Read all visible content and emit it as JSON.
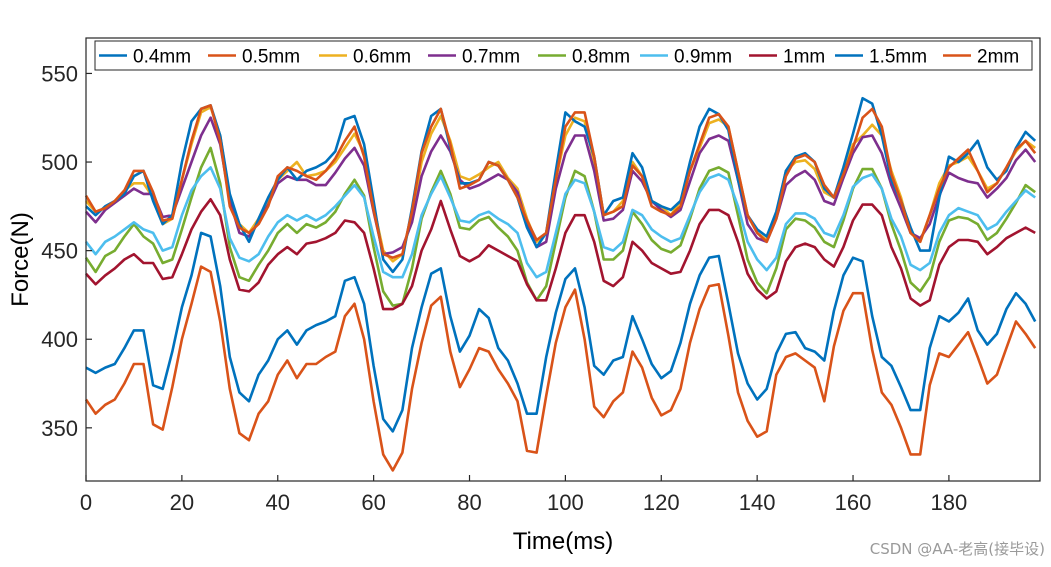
{
  "chart_data": {
    "type": "line",
    "xlabel": "Time(ms)",
    "ylabel": "Force(N)",
    "xlim": [
      0,
      199
    ],
    "ylim": [
      320,
      570
    ],
    "xticks": [
      0,
      20,
      40,
      60,
      80,
      100,
      120,
      140,
      160,
      180
    ],
    "yticks": [
      350,
      400,
      450,
      500,
      550
    ],
    "grid": false,
    "legend_position": "top",
    "x": [
      0,
      2,
      4,
      6,
      8,
      10,
      12,
      14,
      16,
      18,
      20,
      22,
      24,
      26,
      28,
      30,
      32,
      34,
      36,
      38,
      40,
      42,
      44,
      46,
      48,
      50,
      52,
      54,
      56,
      58,
      60,
      62,
      64,
      66,
      68,
      70,
      72,
      74,
      76,
      78,
      80,
      82,
      84,
      86,
      88,
      90,
      92,
      94,
      96,
      98,
      100,
      102,
      104,
      106,
      108,
      110,
      112,
      114,
      116,
      118,
      120,
      122,
      124,
      126,
      128,
      130,
      132,
      134,
      136,
      138,
      140,
      142,
      144,
      146,
      148,
      150,
      152,
      154,
      156,
      158,
      160,
      162,
      164,
      166,
      168,
      170,
      172,
      174,
      176,
      178,
      180,
      182,
      184,
      186,
      188,
      190,
      192,
      194,
      196,
      198
    ],
    "series": [
      {
        "name": "0.4mm",
        "color": "#0072BD",
        "values": [
          384,
          381,
          384,
          386,
          395,
          405,
          405,
          374,
          372,
          393,
          418,
          436,
          460,
          458,
          430,
          390,
          370,
          365,
          380,
          388,
          400,
          405,
          397,
          405,
          408,
          410,
          413,
          433,
          435,
          420,
          385,
          355,
          348,
          360,
          395,
          418,
          437,
          440,
          413,
          393,
          402,
          417,
          412,
          395,
          388,
          375,
          358,
          358,
          390,
          415,
          434,
          440,
          418,
          385,
          380,
          388,
          390,
          413,
          400,
          386,
          378,
          382,
          398,
          420,
          436,
          446,
          447,
          420,
          392,
          375,
          366,
          372,
          392,
          403,
          404,
          395,
          393,
          388,
          416,
          436,
          446,
          444,
          413,
          390,
          385,
          373,
          360,
          360,
          395,
          413,
          410,
          415,
          423,
          405,
          397,
          403,
          417,
          426,
          420,
          410
        ]
      },
      {
        "name": "0.5mm",
        "color": "#D95319",
        "values": [
          366,
          358,
          363,
          366,
          375,
          386,
          386,
          352,
          349,
          373,
          400,
          420,
          441,
          438,
          410,
          372,
          347,
          343,
          358,
          365,
          380,
          388,
          378,
          386,
          386,
          390,
          393,
          413,
          420,
          400,
          365,
          335,
          326,
          336,
          372,
          398,
          419,
          424,
          393,
          373,
          383,
          395,
          393,
          383,
          375,
          365,
          337,
          336,
          368,
          398,
          418,
          428,
          400,
          362,
          356,
          365,
          370,
          393,
          384,
          367,
          357,
          360,
          372,
          398,
          417,
          430,
          431,
          402,
          370,
          354,
          345,
          348,
          380,
          390,
          392,
          388,
          384,
          365,
          396,
          416,
          426,
          426,
          394,
          370,
          363,
          350,
          335,
          335,
          374,
          392,
          390,
          397,
          404,
          390,
          375,
          380,
          395,
          410,
          403,
          395
        ]
      },
      {
        "name": "0.6mm",
        "color": "#EDB120",
        "values": [
          478,
          472,
          474,
          478,
          484,
          488,
          488,
          480,
          465,
          468,
          490,
          510,
          528,
          531,
          515,
          480,
          465,
          460,
          468,
          478,
          490,
          495,
          500,
          492,
          493,
          495,
          500,
          508,
          516,
          505,
          475,
          450,
          444,
          448,
          470,
          500,
          516,
          526,
          512,
          492,
          490,
          493,
          497,
          500,
          491,
          485,
          468,
          455,
          460,
          490,
          515,
          525,
          523,
          500,
          470,
          472,
          478,
          500,
          492,
          478,
          475,
          470,
          478,
          495,
          508,
          522,
          524,
          520,
          495,
          470,
          460,
          456,
          470,
          495,
          500,
          501,
          496,
          483,
          480,
          495,
          510,
          515,
          521,
          515,
          495,
          480,
          460,
          455,
          470,
          488,
          498,
          500,
          503,
          495,
          485,
          488,
          497,
          506,
          512,
          508
        ]
      },
      {
        "name": "0.7mm",
        "color": "#7E2F8E",
        "values": [
          472,
          466,
          473,
          477,
          481,
          485,
          482,
          482,
          469,
          470,
          485,
          500,
          515,
          525,
          510,
          478,
          460,
          458,
          466,
          476,
          488,
          492,
          490,
          490,
          487,
          487,
          494,
          502,
          508,
          498,
          472,
          448,
          449,
          452,
          466,
          492,
          506,
          515,
          506,
          490,
          485,
          487,
          490,
          493,
          490,
          483,
          465,
          452,
          455,
          485,
          505,
          515,
          515,
          495,
          467,
          468,
          473,
          495,
          489,
          478,
          473,
          469,
          473,
          489,
          505,
          513,
          515,
          512,
          490,
          465,
          457,
          455,
          468,
          487,
          492,
          495,
          490,
          478,
          476,
          491,
          505,
          514,
          515,
          505,
          487,
          474,
          460,
          457,
          465,
          481,
          494,
          491,
          489,
          488,
          480,
          485,
          491,
          501,
          507,
          500
        ]
      },
      {
        "name": "0.8mm",
        "color": "#77AC30",
        "values": [
          446,
          438,
          447,
          450,
          458,
          465,
          458,
          454,
          443,
          445,
          462,
          480,
          497,
          508,
          488,
          452,
          435,
          433,
          442,
          450,
          460,
          465,
          460,
          465,
          463,
          466,
          472,
          482,
          490,
          481,
          452,
          427,
          419,
          420,
          440,
          468,
          483,
          495,
          482,
          463,
          462,
          467,
          469,
          463,
          458,
          450,
          432,
          422,
          430,
          455,
          480,
          495,
          492,
          472,
          445,
          445,
          450,
          472,
          465,
          456,
          451,
          449,
          453,
          468,
          485,
          495,
          497,
          494,
          470,
          445,
          432,
          426,
          440,
          462,
          468,
          467,
          463,
          455,
          452,
          467,
          485,
          496,
          496,
          485,
          465,
          450,
          432,
          427,
          435,
          455,
          467,
          469,
          468,
          465,
          456,
          460,
          468,
          477,
          487,
          483
        ]
      },
      {
        "name": "0.9mm",
        "color": "#4DBEEE",
        "values": [
          455,
          448,
          455,
          458,
          462,
          466,
          462,
          460,
          450,
          452,
          470,
          484,
          492,
          497,
          485,
          457,
          446,
          444,
          448,
          458,
          466,
          470,
          467,
          470,
          467,
          470,
          475,
          481,
          487,
          480,
          458,
          438,
          435,
          435,
          448,
          470,
          482,
          492,
          480,
          467,
          466,
          470,
          472,
          468,
          465,
          460,
          443,
          435,
          438,
          460,
          482,
          490,
          488,
          472,
          452,
          450,
          455,
          473,
          470,
          462,
          458,
          455,
          457,
          470,
          483,
          491,
          493,
          490,
          475,
          455,
          445,
          439,
          446,
          465,
          471,
          471,
          468,
          460,
          458,
          470,
          486,
          491,
          493,
          485,
          468,
          458,
          442,
          439,
          443,
          460,
          470,
          474,
          472,
          470,
          462,
          465,
          472,
          478,
          484,
          480
        ]
      },
      {
        "name": "1mm",
        "color": "#A2142F",
        "values": [
          437,
          431,
          436,
          440,
          445,
          448,
          443,
          443,
          434,
          435,
          448,
          462,
          472,
          479,
          470,
          445,
          428,
          427,
          432,
          442,
          448,
          452,
          448,
          454,
          455,
          457,
          460,
          467,
          466,
          460,
          440,
          417,
          417,
          420,
          430,
          450,
          462,
          478,
          462,
          447,
          444,
          447,
          453,
          450,
          447,
          444,
          431,
          422,
          422,
          440,
          460,
          470,
          470,
          455,
          433,
          430,
          435,
          455,
          450,
          443,
          440,
          437,
          438,
          450,
          465,
          473,
          473,
          470,
          455,
          437,
          428,
          423,
          427,
          444,
          452,
          454,
          452,
          445,
          441,
          452,
          467,
          476,
          476,
          470,
          452,
          440,
          423,
          419,
          422,
          442,
          452,
          456,
          456,
          455,
          448,
          452,
          457,
          460,
          463,
          460
        ]
      },
      {
        "name": "1.5mm",
        "color": "#0072BD",
        "values": [
          475,
          470,
          475,
          478,
          482,
          492,
          495,
          478,
          465,
          470,
          500,
          523,
          530,
          532,
          515,
          482,
          465,
          455,
          468,
          480,
          490,
          497,
          490,
          495,
          497,
          500,
          506,
          524,
          526,
          510,
          478,
          445,
          438,
          445,
          474,
          506,
          526,
          530,
          508,
          488,
          488,
          490,
          500,
          498,
          490,
          480,
          463,
          452,
          460,
          495,
          528,
          523,
          520,
          503,
          470,
          478,
          480,
          505,
          497,
          478,
          475,
          473,
          478,
          500,
          520,
          530,
          527,
          518,
          490,
          470,
          462,
          458,
          472,
          495,
          503,
          505,
          500,
          485,
          480,
          497,
          516,
          536,
          533,
          515,
          490,
          478,
          463,
          450,
          450,
          480,
          503,
          500,
          505,
          512,
          497,
          490,
          495,
          508,
          517,
          512
        ]
      },
      {
        "name": "2mm",
        "color": "#D95319",
        "values": [
          481,
          472,
          474,
          478,
          484,
          495,
          495,
          483,
          467,
          468,
          490,
          512,
          530,
          532,
          512,
          475,
          463,
          460,
          465,
          475,
          492,
          497,
          495,
          492,
          490,
          495,
          502,
          512,
          520,
          503,
          473,
          448,
          446,
          448,
          472,
          505,
          520,
          530,
          510,
          485,
          487,
          490,
          500,
          498,
          490,
          480,
          467,
          456,
          460,
          490,
          520,
          528,
          528,
          503,
          470,
          472,
          475,
          498,
          492,
          475,
          472,
          470,
          475,
          495,
          510,
          525,
          527,
          520,
          495,
          470,
          460,
          455,
          468,
          492,
          502,
          504,
          500,
          487,
          480,
          493,
          508,
          525,
          530,
          520,
          493,
          478,
          460,
          455,
          470,
          485,
          497,
          502,
          507,
          495,
          483,
          488,
          497,
          507,
          512,
          505
        ]
      }
    ]
  },
  "watermark": "CSDN @AA-老高(接毕设)"
}
